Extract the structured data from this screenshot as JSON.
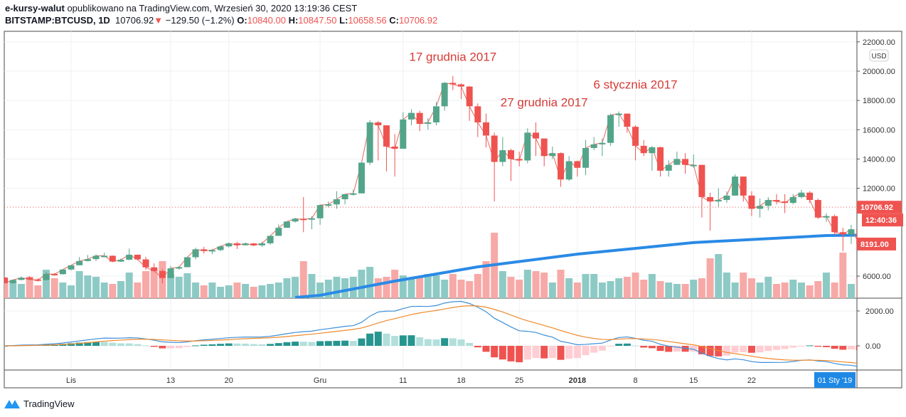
{
  "header": {
    "author": "e-kursy-walut",
    "published_text": "opublikowano na TradingView.com, Wrzesień 30, 2020 13:19:36 CEST",
    "symbol": "BITSTAMP:BTCUSD, 1D",
    "last": "10706.92",
    "change": "−129.50 (−1.2%)",
    "o_label": "O:",
    "o": "10840.00",
    "h_label": "H:",
    "h": "10847.50",
    "l_label": "L:",
    "l": "10658.56",
    "c_label": "C:",
    "c": "10706.92"
  },
  "footer": {
    "brand": "TradingView"
  },
  "colors": {
    "up": "#53a58a",
    "down": "#ef5350",
    "vol_up": "#8ecac5",
    "vol_down": "#f7a9a7",
    "ma": "#2a8ae6",
    "macd": "#3d8fd8",
    "signal": "#f08a2c",
    "hist_up": "#26958f",
    "hist_up_light": "#b2dfdb",
    "hist_down": "#ef5350",
    "hist_down_light": "#ffcdd2",
    "tag": "#ef5350",
    "time_tag": "#1e88e5"
  },
  "chart_data": {
    "type": "candlestick",
    "currency": "USD",
    "ylim": [
      4200,
      22000
    ],
    "yticks": [
      "22000.00",
      "20000.00",
      "18000.00",
      "16000.00",
      "14000.00",
      "12000.00",
      "6000.00"
    ],
    "macd_ticks": [
      "2000.00",
      "0.00"
    ],
    "xticks": [
      {
        "label": "Lis",
        "date": "11-01"
      },
      {
        "label": "13",
        "date": "11-13"
      },
      {
        "label": "20",
        "date": "11-20"
      },
      {
        "label": "Gru",
        "date": "12-01"
      },
      {
        "label": "11",
        "date": "12-11"
      },
      {
        "label": "18",
        "date": "12-18"
      },
      {
        "label": "25",
        "date": "12-25"
      },
      {
        "label": "2018",
        "date": "01-01"
      },
      {
        "label": "8",
        "date": "01-08"
      },
      {
        "label": "15",
        "date": "01-15"
      },
      {
        "label": "22",
        "date": "01-22"
      }
    ],
    "crosshair_time_label": "01 Sty '19",
    "price_tags": {
      "last": "10706.92",
      "countdown": "12:40:36",
      "ma": "8191.00"
    },
    "last_price_line": 10706.92,
    "annotations": [
      {
        "text": "17 grudnia 2017",
        "date": "12-17",
        "price": 20700
      },
      {
        "text": "27 grudnia 2017",
        "date": "12-28",
        "price": 17600
      },
      {
        "text": "6 stycznia 2017",
        "date": "01-08",
        "price": 18800
      }
    ],
    "candles_fields": [
      "date",
      "open",
      "high",
      "low",
      "close"
    ],
    "candles": [
      [
        "10-24",
        5900,
        5960,
        5500,
        5520
      ],
      [
        "10-25",
        5520,
        5760,
        5450,
        5740
      ],
      [
        "10-26",
        5740,
        5970,
        5700,
        5890
      ],
      [
        "10-27",
        5890,
        6000,
        5720,
        5770
      ],
      [
        "10-28",
        5770,
        5850,
        5620,
        5730
      ],
      [
        "10-29",
        5730,
        6300,
        5700,
        6150
      ],
      [
        "10-30",
        6150,
        6200,
        6030,
        6130
      ],
      [
        "10-31",
        6130,
        6470,
        6100,
        6450
      ],
      [
        "11-01",
        6450,
        6750,
        6380,
        6740
      ],
      [
        "11-02",
        6740,
        7300,
        6740,
        7030
      ],
      [
        "11-03",
        7030,
        7450,
        7000,
        7160
      ],
      [
        "11-04",
        7160,
        7500,
        7030,
        7390
      ],
      [
        "11-05",
        7390,
        7600,
        7290,
        7390
      ],
      [
        "11-06",
        7390,
        7410,
        6950,
        6990
      ],
      [
        "11-07",
        6990,
        7200,
        6960,
        7120
      ],
      [
        "11-08",
        7120,
        7880,
        7090,
        7460
      ],
      [
        "11-09",
        7460,
        7470,
        7080,
        7140
      ],
      [
        "11-10",
        7140,
        7320,
        6430,
        6600
      ],
      [
        "11-11",
        6600,
        6880,
        6290,
        6350
      ],
      [
        "11-12",
        6350,
        6480,
        5500,
        5870
      ],
      [
        "11-13",
        5870,
        6700,
        5850,
        6530
      ],
      [
        "11-14",
        6530,
        6700,
        6450,
        6610
      ],
      [
        "11-15",
        6610,
        7320,
        6600,
        7290
      ],
      [
        "11-16",
        7290,
        7950,
        7140,
        7830
      ],
      [
        "11-17",
        7830,
        8000,
        7540,
        7720
      ],
      [
        "11-18",
        7720,
        7860,
        7500,
        7780
      ],
      [
        "11-19",
        7780,
        8100,
        7700,
        8030
      ],
      [
        "11-20",
        8030,
        8300,
        7950,
        8240
      ],
      [
        "11-21",
        8240,
        8350,
        7850,
        8110
      ],
      [
        "11-22",
        8110,
        8300,
        8090,
        8230
      ],
      [
        "11-23",
        8230,
        8270,
        8050,
        8100
      ],
      [
        "11-24",
        8100,
        8340,
        8000,
        8240
      ],
      [
        "11-25",
        8240,
        8770,
        8150,
        8750
      ],
      [
        "11-26",
        8750,
        9530,
        8750,
        9300
      ],
      [
        "11-27",
        9300,
        9740,
        9300,
        9730
      ],
      [
        "11-28",
        9730,
        9990,
        9650,
        9920
      ],
      [
        "11-29",
        9920,
        11400,
        9000,
        9870
      ],
      [
        "11-30",
        9870,
        10100,
        9200,
        9950
      ],
      [
        "12-01",
        9950,
        10900,
        9500,
        10850
      ],
      [
        "12-02",
        10850,
        11100,
        10700,
        10900
      ],
      [
        "12-03",
        10900,
        11800,
        10600,
        11250
      ],
      [
        "12-04",
        11250,
        11600,
        10900,
        11600
      ],
      [
        "12-05",
        11600,
        11900,
        11500,
        11650
      ],
      [
        "12-06",
        11650,
        13800,
        11650,
        13750
      ],
      [
        "12-07",
        13750,
        16650,
        13600,
        16500
      ],
      [
        "12-08",
        16500,
        16600,
        13900,
        16300
      ],
      [
        "12-09",
        16300,
        16300,
        13150,
        14850
      ],
      [
        "12-10",
        14850,
        15700,
        12800,
        14700
      ],
      [
        "12-11",
        14700,
        17200,
        14700,
        16700
      ],
      [
        "12-12",
        16700,
        17400,
        16300,
        17150
      ],
      [
        "12-13",
        17150,
        17300,
        15900,
        16400
      ],
      [
        "12-14",
        16400,
        16800,
        16000,
        16500
      ],
      [
        "12-15",
        16500,
        17900,
        16300,
        17600
      ],
      [
        "12-16",
        17600,
        19250,
        17300,
        19200
      ],
      [
        "12-17",
        19200,
        19670,
        18700,
        19100
      ],
      [
        "12-18",
        19100,
        19170,
        18100,
        18950
      ],
      [
        "12-19",
        18950,
        18980,
        16600,
        17600
      ],
      [
        "12-20",
        17600,
        17800,
        15500,
        16500
      ],
      [
        "12-21",
        16500,
        17100,
        14800,
        15600
      ],
      [
        "12-22",
        15600,
        15800,
        11100,
        13800
      ],
      [
        "12-23",
        13800,
        15500,
        13500,
        14600
      ],
      [
        "12-24",
        14600,
        14700,
        12500,
        14000
      ],
      [
        "12-25",
        14000,
        14500,
        13500,
        13900
      ],
      [
        "12-26",
        13900,
        16100,
        13700,
        15800
      ],
      [
        "12-27",
        15800,
        16500,
        14200,
        15400
      ],
      [
        "12-28",
        15400,
        15400,
        13500,
        14200
      ],
      [
        "12-29",
        14200,
        14850,
        14000,
        14400
      ],
      [
        "12-30",
        14400,
        14450,
        12100,
        12600
      ],
      [
        "12-31",
        12600,
        14200,
        12500,
        13850
      ],
      [
        "01-01",
        13850,
        13900,
        12800,
        13400
      ],
      [
        "01-02",
        13400,
        15300,
        12900,
        14750
      ],
      [
        "01-03",
        14750,
        15500,
        14600,
        15000
      ],
      [
        "01-04",
        15000,
        15400,
        14200,
        15100
      ],
      [
        "01-05",
        15100,
        17100,
        14900,
        17000
      ],
      [
        "01-06",
        17000,
        17250,
        16200,
        17100
      ],
      [
        "01-07",
        17100,
        17100,
        15800,
        16200
      ],
      [
        "01-08",
        16200,
        16300,
        13900,
        14900
      ],
      [
        "01-09",
        14900,
        15300,
        14200,
        14400
      ],
      [
        "01-10",
        14400,
        14900,
        13200,
        14800
      ],
      [
        "01-11",
        14800,
        14850,
        12800,
        13200
      ],
      [
        "01-12",
        13200,
        13900,
        12800,
        13600
      ],
      [
        "01-13",
        13600,
        14500,
        13600,
        14000
      ],
      [
        "01-14",
        14000,
        14400,
        13000,
        13600
      ],
      [
        "01-15",
        13600,
        14300,
        13400,
        13600
      ],
      [
        "01-16",
        13600,
        13600,
        10000,
        11400
      ],
      [
        "01-17",
        11400,
        11700,
        9100,
        11100
      ],
      [
        "01-18",
        11100,
        12000,
        10700,
        11200
      ],
      [
        "01-19",
        11200,
        11800,
        11000,
        11500
      ],
      [
        "01-20",
        11500,
        12950,
        11500,
        12800
      ],
      [
        "01-21",
        12800,
        12800,
        11100,
        11500
      ],
      [
        "01-22",
        11500,
        11800,
        10100,
        10600
      ],
      [
        "01-23",
        10600,
        11300,
        10000,
        10800
      ],
      [
        "01-24",
        10800,
        11400,
        10500,
        11200
      ],
      [
        "01-25",
        11200,
        11600,
        10900,
        11100
      ],
      [
        "01-26",
        11100,
        11600,
        10300,
        11000
      ],
      [
        "01-27",
        11000,
        11600,
        10900,
        11400
      ],
      [
        "01-28",
        11400,
        11900,
        11300,
        11700
      ],
      [
        "01-29",
        11700,
        11800,
        11000,
        11200
      ],
      [
        "01-30",
        11200,
        11300,
        9900,
        10000
      ],
      [
        "01-31",
        10000,
        10300,
        9700,
        10100
      ],
      [
        "02-01",
        10100,
        10200,
        8800,
        9000
      ],
      [
        "02-02",
        9000,
        9300,
        7700,
        8850
      ],
      [
        "02-03",
        8850,
        9500,
        8200,
        9200
      ],
      [
        "02-04",
        9200,
        9400,
        7900,
        8191
      ]
    ],
    "volume_relative": [
      22,
      24,
      20,
      30,
      18,
      40,
      28,
      22,
      18,
      38,
      32,
      30,
      22,
      20,
      24,
      36,
      22,
      38,
      40,
      52,
      34,
      30,
      35,
      22,
      18,
      22,
      16,
      18,
      22,
      20,
      16,
      18,
      20,
      22,
      28,
      30,
      52,
      34,
      22,
      26,
      30,
      28,
      30,
      40,
      44,
      28,
      30,
      40,
      32,
      28,
      30,
      34,
      32,
      26,
      34,
      26,
      24,
      34,
      52,
      92,
      38,
      30,
      26,
      40,
      38,
      36,
      22,
      40,
      28,
      22,
      34,
      34,
      22,
      24,
      28,
      30,
      36,
      26,
      34,
      24,
      22,
      20,
      20,
      26,
      28,
      56,
      62,
      36,
      22,
      36,
      28,
      22,
      30,
      20,
      22,
      26,
      22,
      18,
      24,
      36,
      22,
      64,
      20,
      28
    ],
    "ma_points": [
      [
        "11-28",
        4540
      ],
      [
        "12-01",
        4690
      ],
      [
        "12-10",
        5660
      ],
      [
        "12-20",
        6630
      ],
      [
        "01-01",
        7500
      ],
      [
        "01-15",
        8290
      ],
      [
        "01-31",
        8770
      ],
      [
        "02-04",
        8800
      ]
    ]
  }
}
